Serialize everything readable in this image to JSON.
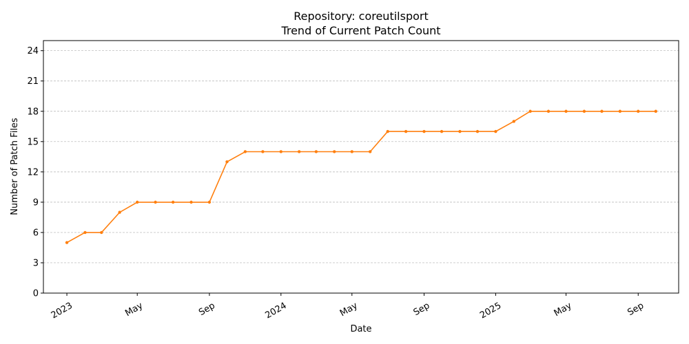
{
  "chart_data": {
    "type": "line",
    "title": "Repository: coreutilsport",
    "subtitle": "Trend of Current Patch Count",
    "xlabel": "Date",
    "ylabel": "Number of Patch Files",
    "ylim": [
      0,
      25
    ],
    "yticks": [
      0,
      3,
      6,
      9,
      12,
      15,
      18,
      21,
      24
    ],
    "xlim": [
      "2022-11-22",
      "2025-11-09"
    ],
    "xticks": [
      {
        "date": "2023-01-01",
        "label": "2023"
      },
      {
        "date": "2023-05-01",
        "label": "May"
      },
      {
        "date": "2023-09-01",
        "label": "Sep"
      },
      {
        "date": "2024-01-01",
        "label": "2024"
      },
      {
        "date": "2024-05-01",
        "label": "May"
      },
      {
        "date": "2024-09-01",
        "label": "Sep"
      },
      {
        "date": "2025-01-01",
        "label": "2025"
      },
      {
        "date": "2025-05-01",
        "label": "May"
      },
      {
        "date": "2025-09-01",
        "label": "Sep"
      }
    ],
    "grid": "y",
    "color": "#ff7f0e",
    "series": [
      {
        "x": [
          "2023-01-01",
          "2023-02-01",
          "2023-03-01",
          "2023-04-01",
          "2023-05-01",
          "2023-06-01",
          "2023-07-01",
          "2023-08-01",
          "2023-09-01",
          "2023-10-01",
          "2023-11-01",
          "2023-12-01",
          "2024-01-01",
          "2024-02-01",
          "2024-03-01",
          "2024-04-01",
          "2024-05-01",
          "2024-06-01",
          "2024-07-01",
          "2024-08-01",
          "2024-09-01",
          "2024-10-01",
          "2024-11-01",
          "2024-12-01",
          "2025-01-01",
          "2025-02-01",
          "2025-03-01",
          "2025-04-01",
          "2025-05-01",
          "2025-06-01",
          "2025-07-01",
          "2025-08-01",
          "2025-09-01",
          "2025-10-01"
        ],
        "values": [
          5,
          6,
          6,
          8,
          9,
          9,
          9,
          9,
          9,
          13,
          14,
          14,
          14,
          14,
          14,
          14,
          14,
          14,
          16,
          16,
          16,
          16,
          16,
          16,
          16,
          17,
          18,
          18,
          18,
          18,
          18,
          18,
          18,
          18
        ]
      }
    ]
  }
}
